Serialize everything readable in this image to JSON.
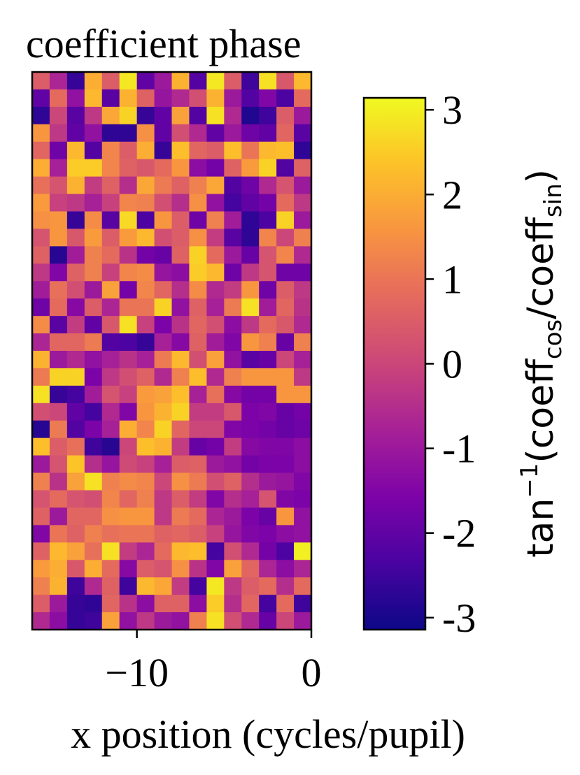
{
  "chart_data": {
    "type": "heatmap",
    "title": "coefficient phase",
    "xlabel": "x position (cycles/pupil)",
    "ylabel": "",
    "colormap": "plasma",
    "xlim": [
      -16,
      0
    ],
    "xticks": [
      {
        "value": -10,
        "label": "−10"
      },
      {
        "value": 0,
        "label": "0"
      }
    ],
    "rows": 32,
    "cols": 16,
    "colorbar": {
      "label_base": "tan",
      "label_sup": "−1",
      "label_open": "(coeff",
      "label_sub1": "cos",
      "label_mid": "/coeff",
      "label_sub2": "sin",
      "label_close": ")",
      "range": [
        -3.14159,
        3.14159
      ],
      "ticks": [
        {
          "value": 3,
          "label": "3"
        },
        {
          "value": 2,
          "label": "2"
        },
        {
          "value": 1,
          "label": "1"
        },
        {
          "value": 0,
          "label": "0"
        },
        {
          "value": -1,
          "label": "-1"
        },
        {
          "value": -2,
          "label": "-2"
        },
        {
          "value": -3,
          "label": "-3"
        }
      ]
    },
    "values": [
      [
        0.5,
        -0.7,
        -2.6,
        2.0,
        0.5,
        2.9,
        -2.0,
        -1.0,
        2.1,
        -2.2,
        2.9,
        0.5,
        -2.5,
        2.8,
        0.4,
        2.2
      ],
      [
        -2.0,
        0.8,
        -1.2,
        2.2,
        -2.1,
        2.1,
        0.6,
        -1.1,
        -0.6,
        0.2,
        2.1,
        -1.0,
        -2.2,
        -1.5,
        -2.3,
        0.8
      ],
      [
        -2.7,
        0.0,
        -2.1,
        -0.3,
        1.9,
        2.6,
        -2.6,
        -2.0,
        1.8,
        -2.2,
        2.8,
        -0.6,
        -2.9,
        -2.5,
        0.5,
        -1.0
      ],
      [
        1.6,
        -0.3,
        -2.0,
        -1.2,
        -2.7,
        -2.7,
        1.5,
        -2.0,
        0.2,
        -0.6,
        -2.0,
        -1.0,
        -1.8,
        -2.0,
        0.7,
        -2.1
      ],
      [
        0.7,
        -1.8,
        2.2,
        -2.2,
        1.3,
        0.5,
        2.0,
        -2.6,
        2.3,
        0.7,
        0.5,
        2.3,
        1.0,
        2.2,
        2.3,
        -2.7
      ],
      [
        2.0,
        -0.8,
        2.5,
        2.5,
        1.3,
        0.6,
        0.4,
        0.8,
        1.6,
        -1.3,
        -1.7,
        0.6,
        1.7,
        2.6,
        -2.2,
        0.6
      ],
      [
        0.9,
        0.3,
        2.1,
        -0.2,
        0.6,
        -0.5,
        1.9,
        1.1,
        0.6,
        1.2,
        1.9,
        -2.2,
        -1.8,
        -0.6,
        0.3,
        -1.0
      ],
      [
        1.7,
        -0.1,
        -0.3,
        -0.8,
        -0.1,
        1.3,
        1.2,
        0.2,
        -0.5,
        1.5,
        -1.2,
        -2.4,
        -2.0,
        -1.7,
        0.8,
        -0.3
      ],
      [
        1.5,
        1.6,
        -2.6,
        1.4,
        -2.1,
        2.7,
        -2.3,
        1.6,
        0.5,
        -1.8,
        1.2,
        -0.9,
        -2.7,
        -2.3,
        2.6,
        -1.0
      ],
      [
        0.3,
        1.6,
        0.4,
        1.7,
        0.5,
        1.7,
        2.2,
        0.2,
        0.5,
        1.5,
        -0.2,
        -2.1,
        -2.7,
        1.3,
        0.0,
        1.2
      ],
      [
        0.6,
        -2.8,
        -0.9,
        1.2,
        0.8,
        -0.4,
        -1.7,
        -1.9,
        0.6,
        2.6,
        0.8,
        -1.0,
        -1.9,
        0.3,
        1.3,
        -0.6
      ],
      [
        -0.3,
        -1.5,
        0.6,
        1.2,
        -0.1,
        1.3,
        1.4,
        -1.1,
        -1.3,
        2.5,
        2.2,
        -1.8,
        -0.3,
        0.3,
        -1.8,
        -1.8
      ],
      [
        -0.9,
        0.9,
        0.2,
        -1.0,
        1.8,
        -1.7,
        1.3,
        0.7,
        -0.5,
        1.4,
        -0.6,
        -0.2,
        1.6,
        -1.8,
        0.5,
        -0.3
      ],
      [
        -1.8,
        0.8,
        -1.4,
        0.5,
        -0.7,
        1.0,
        1.0,
        2.6,
        -1.2,
        0.6,
        -0.8,
        1.1,
        2.8,
        -0.9,
        0.7,
        -0.4
      ],
      [
        1.4,
        -2.1,
        -0.2,
        -2.0,
        0.4,
        2.8,
        -0.1,
        -1.6,
        -0.4,
        0.7,
        0.2,
        -1.3,
        -0.3,
        0.8,
        0.4,
        -0.6
      ],
      [
        -0.7,
        0.7,
        0.7,
        1.1,
        -2.2,
        -2.3,
        -2.6,
        -0.8,
        -1.4,
        0.6,
        -0.9,
        -1.5,
        1.6,
        1.2,
        -1.9,
        1.2
      ],
      [
        2.1,
        -1.0,
        -0.6,
        -1.2,
        -0.8,
        -0.4,
        -0.8,
        1.1,
        2.2,
        0.2,
        1.8,
        -1.2,
        -2.1,
        -1.9,
        0.0,
        -0.8
      ],
      [
        1.1,
        2.6,
        2.6,
        -1.6,
        -0.3,
        0.2,
        0.6,
        -0.6,
        1.2,
        2.3,
        -0.6,
        1.2,
        1.6,
        1.6,
        1.6,
        -0.3
      ],
      [
        2.8,
        -2.6,
        -2.4,
        -0.9,
        0.3,
        -0.1,
        1.7,
        1.8,
        2.3,
        -0.8,
        0.9,
        -1.4,
        -1.7,
        -1.7,
        1.6,
        1.6
      ],
      [
        0.2,
        0.0,
        -2.0,
        -2.4,
        -0.6,
        -1.5,
        1.6,
        2.1,
        2.6,
        -0.2,
        -0.2,
        0.4,
        -1.6,
        -1.5,
        -1.9,
        -1.7
      ],
      [
        -2.8,
        1.1,
        -2.2,
        -1.6,
        -0.8,
        2.0,
        1.3,
        2.6,
        0.7,
        0.0,
        0.0,
        -1.5,
        -1.6,
        -1.7,
        -1.9,
        -1.8
      ],
      [
        2.3,
        0.5,
        0.9,
        -2.5,
        -2.8,
        0.0,
        2.3,
        2.1,
        -0.2,
        -1.9,
        -1.7,
        -0.2,
        -1.4,
        -1.5,
        -1.5,
        -1.3
      ],
      [
        -1.0,
        0.3,
        2.4,
        -0.5,
        -1.1,
        0.1,
        -0.1,
        -0.8,
        0.5,
        0.6,
        -1.0,
        -1.2,
        -1.7,
        -1.6,
        -1.6,
        -1.3
      ],
      [
        1.2,
        -0.4,
        1.8,
        2.8,
        1.2,
        1.4,
        1.3,
        0.0,
        1.5,
        1.1,
        0.2,
        0.6,
        -0.5,
        -1.0,
        -1.1,
        -1.5
      ],
      [
        0.3,
        0.8,
        0.3,
        0.2,
        1.3,
        0.7,
        1.2,
        -0.3,
        0.5,
        -0.2,
        -1.5,
        -0.5,
        -0.8,
        0.3,
        -1.5,
        -1.6
      ],
      [
        0.6,
        -1.0,
        0.7,
        0.7,
        1.5,
        1.6,
        1.6,
        -0.3,
        1.1,
        0.8,
        -0.7,
        -1.0,
        -1.6,
        -1.9,
        1.6,
        -1.2
      ],
      [
        -1.5,
        1.0,
        0.6,
        1.2,
        0.9,
        1.0,
        1.0,
        0.6,
        0.7,
        0.5,
        -0.1,
        -1.1,
        -1.5,
        -1.6,
        -1.3,
        -1.2
      ],
      [
        0.6,
        2.2,
        1.8,
        0.9,
        2.8,
        -0.2,
        -0.7,
        0.8,
        2.2,
        2.3,
        -2.4,
        0.2,
        -0.6,
        -1.7,
        -2.3,
        3.0
      ],
      [
        1.7,
        2.0,
        0.4,
        2.0,
        0.8,
        -1.4,
        0.5,
        0.3,
        1.5,
        -0.4,
        -1.5,
        1.8,
        0.7,
        -0.7,
        -1.3,
        -0.7
      ],
      [
        1.2,
        2.1,
        -2.5,
        -0.6,
        0.6,
        -2.5,
        2.2,
        1.9,
        -0.2,
        -2.4,
        2.9,
        -0.3,
        0.5,
        0.8,
        -0.5,
        0.8
      ],
      [
        0.5,
        -1.0,
        -2.6,
        -2.7,
        0.7,
        -0.4,
        -1.3,
        0.6,
        0.6,
        -1.3,
        2.5,
        -0.5,
        0.7,
        -2.4,
        0.8,
        -2.5
      ],
      [
        -0.6,
        -1.3,
        -2.6,
        -2.5,
        1.8,
        -1.2,
        -0.3,
        -1.0,
        -1.2,
        1.2,
        2.8,
        0.2,
        -0.6,
        -1.9,
        0.0,
        -1.0
      ]
    ]
  }
}
